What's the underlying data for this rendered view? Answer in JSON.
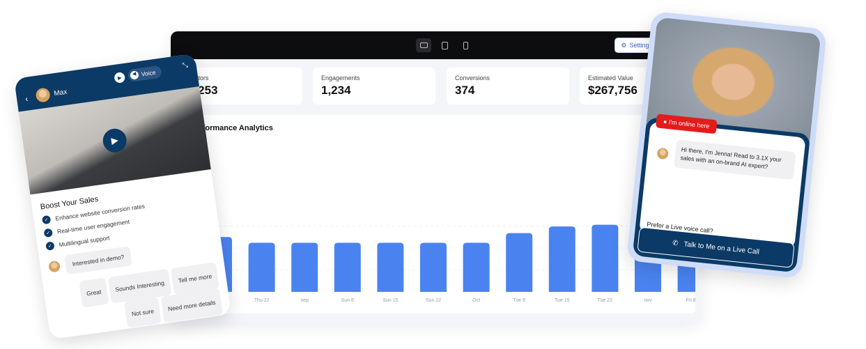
{
  "dashboard": {
    "device_icons": [
      "desktop-icon",
      "tablet-icon",
      "mobile-icon"
    ],
    "settings_label": "Settings",
    "stats": [
      {
        "label": "Visitors",
        "value": "5,253"
      },
      {
        "label": "Engagements",
        "value": "1,234"
      },
      {
        "label": "Conversions",
        "value": "374"
      },
      {
        "label": "Estimated Value",
        "value": "$267,756"
      }
    ]
  },
  "chart_data": {
    "type": "bar",
    "title": "Performance Analytics",
    "categories": [
      "",
      "Thu 22",
      "sep",
      "Sun 8",
      "Sun 15",
      "Sun 22",
      "Oct",
      "Tue 8",
      "Tue 15",
      "Tue 22",
      "nov",
      "Fri 8"
    ],
    "values": [
      125,
      112,
      112,
      112,
      112,
      112,
      112,
      134,
      149,
      153,
      178,
      160
    ],
    "color": "#4a83f0",
    "grid": true
  },
  "left_widget": {
    "agent_name": "Max",
    "voice_label": "Voice",
    "heading": "Boost Your Sales",
    "features": [
      "Enhance website conversion rates",
      "Real-time user engagement",
      "Multilingual support"
    ],
    "message": "Interested in demo?",
    "replies": [
      "Great",
      "Sounds Interesting",
      "Tell me more",
      "Not sure",
      "Need more details"
    ],
    "accent": "#0b3a66"
  },
  "right_widget": {
    "status": "I'm online here",
    "message": "Hi there, I'm Jenna! Read to 3.1X your sales with an on-brand AI expert?",
    "prompt": "Prefer a Live voice call?",
    "call_button": "Talk to Me on a Live Call",
    "status_color": "#e31b1b"
  }
}
